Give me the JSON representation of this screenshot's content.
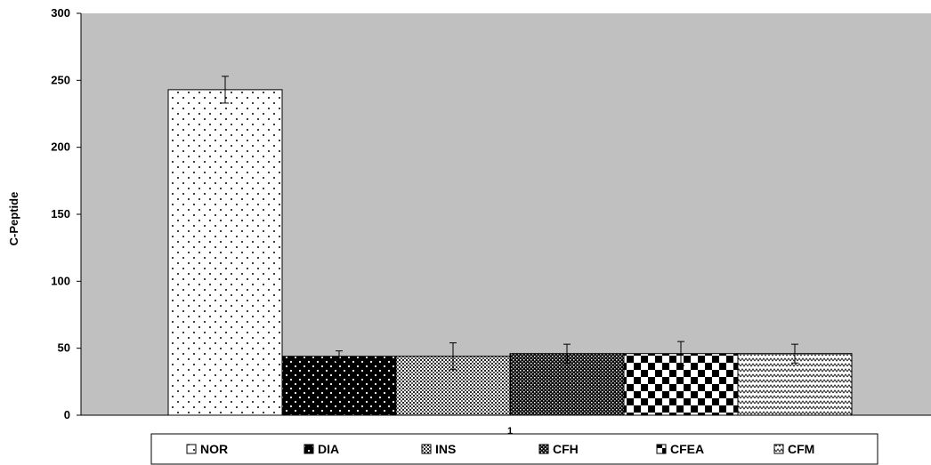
{
  "chart_data": {
    "type": "bar",
    "title": "",
    "xlabel": "",
    "ylabel": "C-Peptide",
    "categories": [
      "1"
    ],
    "ylim": [
      0,
      300
    ],
    "yticks": [
      0,
      50,
      100,
      150,
      200,
      250,
      300
    ],
    "grid": false,
    "legend_position": "bottom",
    "plot_background": "#c0c0c0",
    "series": [
      {
        "name": "NOR",
        "values": [
          243
        ],
        "error": [
          10
        ],
        "pattern": "sparse-dots"
      },
      {
        "name": "DIA",
        "values": [
          44
        ],
        "error": [
          4
        ],
        "pattern": "black-white-dots"
      },
      {
        "name": "INS",
        "values": [
          44
        ],
        "error": [
          10
        ],
        "pattern": "fine-crosshatch"
      },
      {
        "name": "CFH",
        "values": [
          46
        ],
        "error": [
          7
        ],
        "pattern": "dense-crosshatch"
      },
      {
        "name": "CFEA",
        "values": [
          46
        ],
        "error": [
          9
        ],
        "pattern": "checkerboard"
      },
      {
        "name": "CFM",
        "values": [
          46
        ],
        "error": [
          7
        ],
        "pattern": "zigzag"
      }
    ]
  }
}
